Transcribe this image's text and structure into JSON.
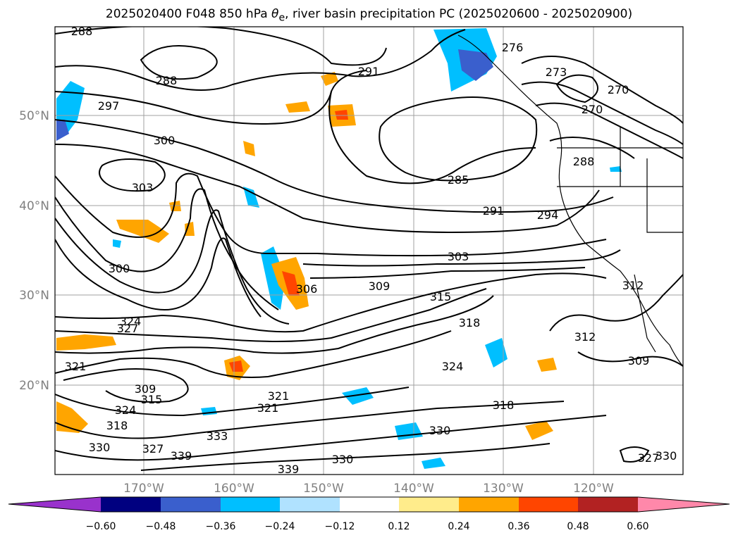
{
  "title_prefix": "2025020400 F048 850 hPa ",
  "title_symbol": "θ",
  "title_symbol_sub": "e",
  "title_suffix": ", river basin precipitation PC (2025020600 - 2025020900)",
  "lat_labels": [
    "50°N",
    "40°N",
    "30°N",
    "20°N"
  ],
  "lon_labels": [
    "170°W",
    "160°W",
    "150°W",
    "140°W",
    "130°W",
    "120°W"
  ],
  "contour_labels": [
    "288",
    "291",
    "276",
    "273",
    "270",
    "270",
    "288",
    "297",
    "300",
    "303",
    "285",
    "291",
    "294",
    "288",
    "300",
    "306",
    "303",
    "309",
    "315",
    "318",
    "312",
    "312",
    "309",
    "324",
    "327",
    "321",
    "324",
    "309",
    "315",
    "321",
    "321",
    "318",
    "324",
    "318",
    "330",
    "327",
    "339",
    "333",
    "330",
    "339",
    "330",
    "327",
    "330"
  ],
  "colorbar": {
    "ticks": [
      "−0.60",
      "−0.48",
      "−0.36",
      "−0.24",
      "−0.12",
      "0.12",
      "0.24",
      "0.36",
      "0.48",
      "0.60"
    ],
    "colors": [
      "#9932cc",
      "#000080",
      "#3a5fcd",
      "#00bfff",
      "#b0e2ff",
      "#ffffff",
      "#ffec8b",
      "#ffa500",
      "#ff4500",
      "#b22222",
      "#ff88aa"
    ]
  }
}
